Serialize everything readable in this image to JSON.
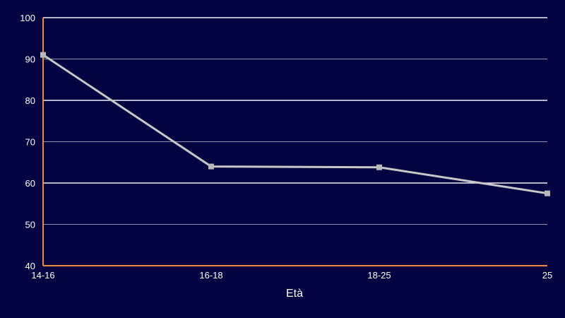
{
  "chart_data": {
    "type": "line",
    "title": "",
    "xlabel": "Età",
    "ylabel": "",
    "categories": [
      "14-16",
      "16-18",
      "18-25",
      "25"
    ],
    "series": [
      {
        "values": [
          91,
          64,
          63.8,
          57.5
        ]
      }
    ],
    "ylim": [
      40,
      100
    ],
    "yticks": [
      40,
      50,
      60,
      70,
      80,
      90,
      100
    ],
    "grid": true,
    "legend": "none"
  },
  "colors": {
    "background": "#020340",
    "grid": "#ffffff",
    "axis": "#f0883e",
    "line": "#c8c8c8",
    "marker": "#b9b9b9",
    "text": "#ffffff"
  }
}
